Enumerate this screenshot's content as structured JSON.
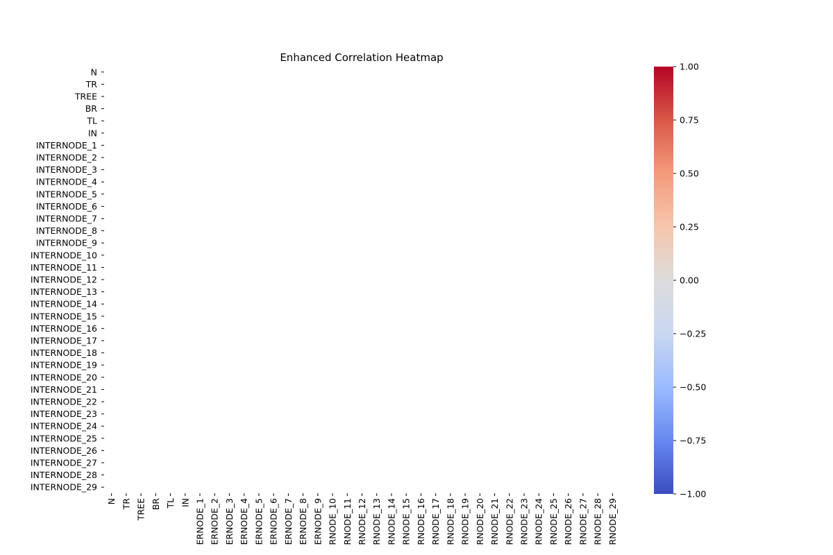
{
  "chart_data": {
    "type": "heatmap",
    "title": "Enhanced Correlation Heatmap",
    "xlabel": "",
    "ylabel": "",
    "row_labels": [
      "N",
      "TR",
      "TREE",
      "BR",
      "TL",
      "IN",
      "INTERNODE_1",
      "INTERNODE_2",
      "INTERNODE_3",
      "INTERNODE_4",
      "INTERNODE_5",
      "INTERNODE_6",
      "INTERNODE_7",
      "INTERNODE_8",
      "INTERNODE_9",
      "INTERNODE_10",
      "INTERNODE_11",
      "INTERNODE_12",
      "INTERNODE_13",
      "INTERNODE_14",
      "INTERNODE_15",
      "INTERNODE_16",
      "INTERNODE_17",
      "INTERNODE_18",
      "INTERNODE_19",
      "INTERNODE_20",
      "INTERNODE_21",
      "INTERNODE_22",
      "INTERNODE_23",
      "INTERNODE_24",
      "INTERNODE_25",
      "INTERNODE_26",
      "INTERNODE_27",
      "INTERNODE_28",
      "INTERNODE_29"
    ],
    "col_labels": [
      "N",
      "TR",
      "TREE",
      "BR",
      "TL",
      "IN",
      "ERNODE_1",
      "ERNODE_2",
      "ERNODE_3",
      "ERNODE_4",
      "ERNODE_5",
      "ERNODE_6",
      "ERNODE_7",
      "ERNODE_8",
      "ERNODE_9",
      "RNODE_10",
      "RNODE_11",
      "RNODE_12",
      "RNODE_13",
      "RNODE_14",
      "RNODE_15",
      "RNODE_16",
      "RNODE_17",
      "RNODE_18",
      "RNODE_19",
      "RNODE_20",
      "RNODE_21",
      "RNODE_22",
      "RNODE_23",
      "RNODE_24",
      "RNODE_25",
      "RNODE_26",
      "RNODE_27",
      "RNODE_28",
      "RNODE_29"
    ],
    "values": null,
    "colormap": "coolwarm",
    "colorbar": {
      "vmin": -1.0,
      "vmax": 1.0,
      "ticks": [
        1.0,
        0.75,
        0.5,
        0.25,
        0.0,
        -0.25,
        -0.5,
        -0.75,
        -1.0
      ],
      "tick_labels": [
        "1.00",
        "0.75",
        "0.50",
        "0.25",
        "0.00",
        "−0.25",
        "−0.50",
        "−0.75",
        "−1.00"
      ],
      "colors": [
        "#3b4cc0",
        "#6788ee",
        "#9abbff",
        "#c9d7f0",
        "#dddcdc",
        "#f6c6ad",
        "#f49a7b",
        "#d95847",
        "#b40426"
      ]
    },
    "grid": false,
    "legend": "colorbar-right"
  }
}
